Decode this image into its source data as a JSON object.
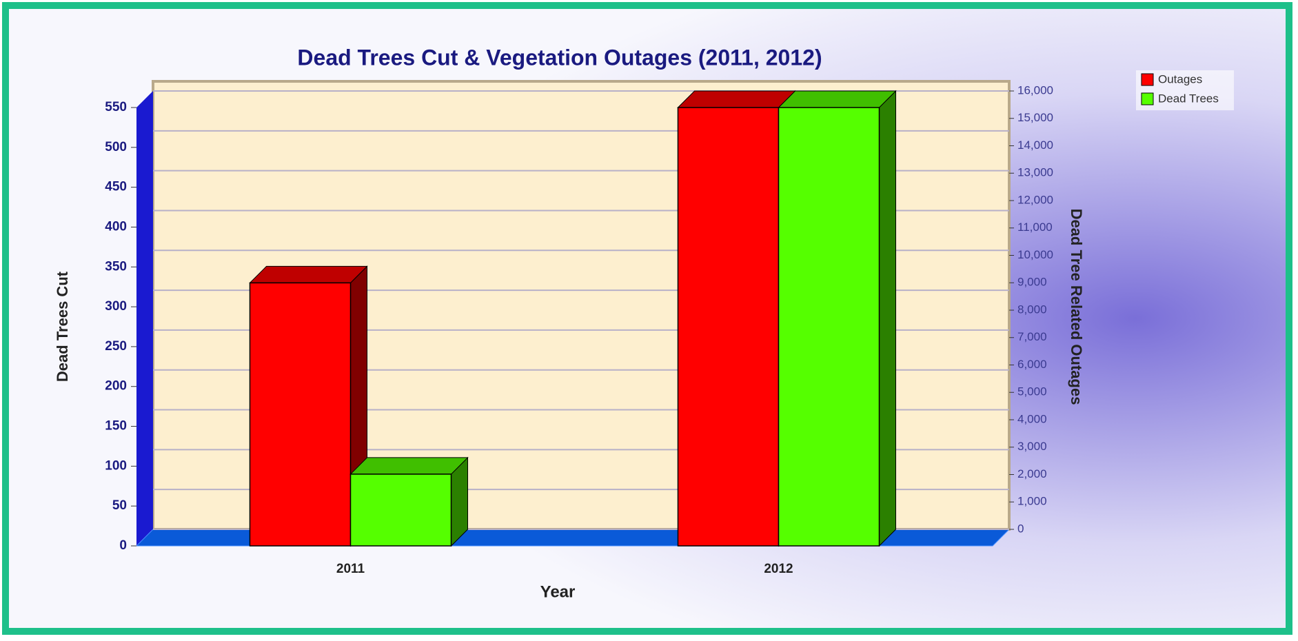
{
  "chart_data": {
    "type": "bar3d",
    "title": "Dead Trees Cut & Vegetation Outages (2011, 2012)",
    "x_label": "Year",
    "y_label": "Dead Trees Cut",
    "y2_label": "Dead Tree Related Outages",
    "categories": [
      "2011",
      "2012"
    ],
    "series": [
      {
        "name": "Outages",
        "color": "#ff0000",
        "axis": "y2",
        "values": [
          9600,
          16000
        ]
      },
      {
        "name": "Dead Trees",
        "color": "#55ff00",
        "values": [
          90,
          550
        ]
      }
    ],
    "ylim": [
      0,
      550
    ],
    "yticks": [
      0,
      50,
      100,
      150,
      200,
      250,
      300,
      350,
      400,
      450,
      500,
      550
    ],
    "y2lim": [
      0,
      16000
    ],
    "y2ticks": [
      0,
      {
        "value": 1000,
        "label": "1,000"
      },
      {
        "value": 2000,
        "label": "2,000"
      },
      {
        "value": 3000,
        "label": "3,000"
      },
      {
        "value": 4000,
        "label": "4,000"
      },
      {
        "value": 5000,
        "label": "5,000"
      },
      {
        "value": 6000,
        "label": "6,000"
      },
      {
        "value": 7000,
        "label": "7,000"
      },
      {
        "value": 8000,
        "label": "8,000"
      },
      {
        "value": 9000,
        "label": "9,000"
      },
      {
        "value": 10000,
        "label": "10,000"
      },
      {
        "value": 11000,
        "label": "11,000"
      },
      {
        "value": 12000,
        "label": "12,000"
      },
      {
        "value": 13000,
        "label": "13,000"
      },
      {
        "value": 14000,
        "label": "14,000"
      },
      {
        "value": 15000,
        "label": "15,000"
      },
      {
        "value": 16000,
        "label": "16,000"
      }
    ],
    "grid": true,
    "legend": "top-right"
  }
}
